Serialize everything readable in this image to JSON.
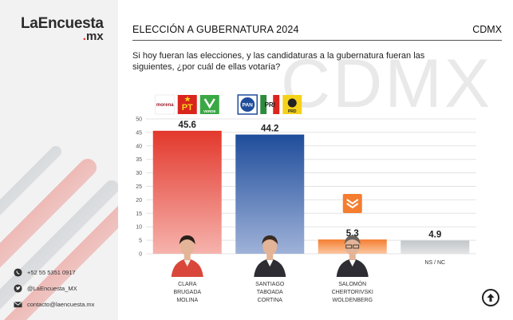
{
  "brand": {
    "name": "LaEncuesta",
    "tld": ".mx",
    "tld_dot": ".",
    "tld_text": "mx"
  },
  "contacts": [
    {
      "icon": "whatsapp-icon",
      "text": "+52 55 5351 0917"
    },
    {
      "icon": "twitter-icon",
      "text": "@LaEncuesta_MX"
    },
    {
      "icon": "mail-icon",
      "text": "contacto@laencuesta.mx"
    }
  ],
  "header": {
    "title": "ELECCIÓN A GUBERNATURA 2024",
    "region": "CDMX"
  },
  "question": "Si hoy fueran las elecciones, y las candidaturas a la gubernatura fueran las siguientes, ¿por cuál de ellas votaría?",
  "watermark": "CDMX",
  "colors": {
    "red": "#e3382c",
    "blue": "#1f4d9b",
    "orange": "#f47d30",
    "gray": "#c3c6c9",
    "accent": "#d8352a"
  },
  "chart_data": {
    "type": "bar",
    "categories": [
      "CLARA BRUGADA MOLINA",
      "SANTIAGO TABOADA CORTINA",
      "SALOMÓN CHERTORIVSKI WOLDENBERG",
      "NS / NC"
    ],
    "category_lines": [
      [
        "CLARA",
        "BRUGADA",
        "MOLINA"
      ],
      [
        "SANTIAGO",
        "TABOADA",
        "CORTINA"
      ],
      [
        "SALOMÓN",
        "CHERTORIVSKI",
        "WOLDENBERG"
      ],
      [
        "NS / NC"
      ]
    ],
    "values": [
      45.6,
      44.2,
      5.3,
      4.9
    ],
    "labels": [
      "45.6",
      "44.2",
      "5.3",
      "4.9"
    ],
    "bar_colors": [
      "#e3382c",
      "#1f4d9b",
      "#f47d30",
      "#c3c6c9"
    ],
    "party_logos": [
      [
        "morena",
        "PT",
        "VERDE"
      ],
      [
        "PAN",
        "PRI",
        "PRD"
      ],
      [
        "MC"
      ],
      []
    ],
    "ylim": [
      0,
      50
    ],
    "yticks": [
      "0",
      "5",
      "10",
      "15",
      "20",
      "25",
      "30",
      "35",
      "40",
      "45",
      "50"
    ],
    "grid": true,
    "title": "",
    "xlabel": "",
    "ylabel": ""
  }
}
